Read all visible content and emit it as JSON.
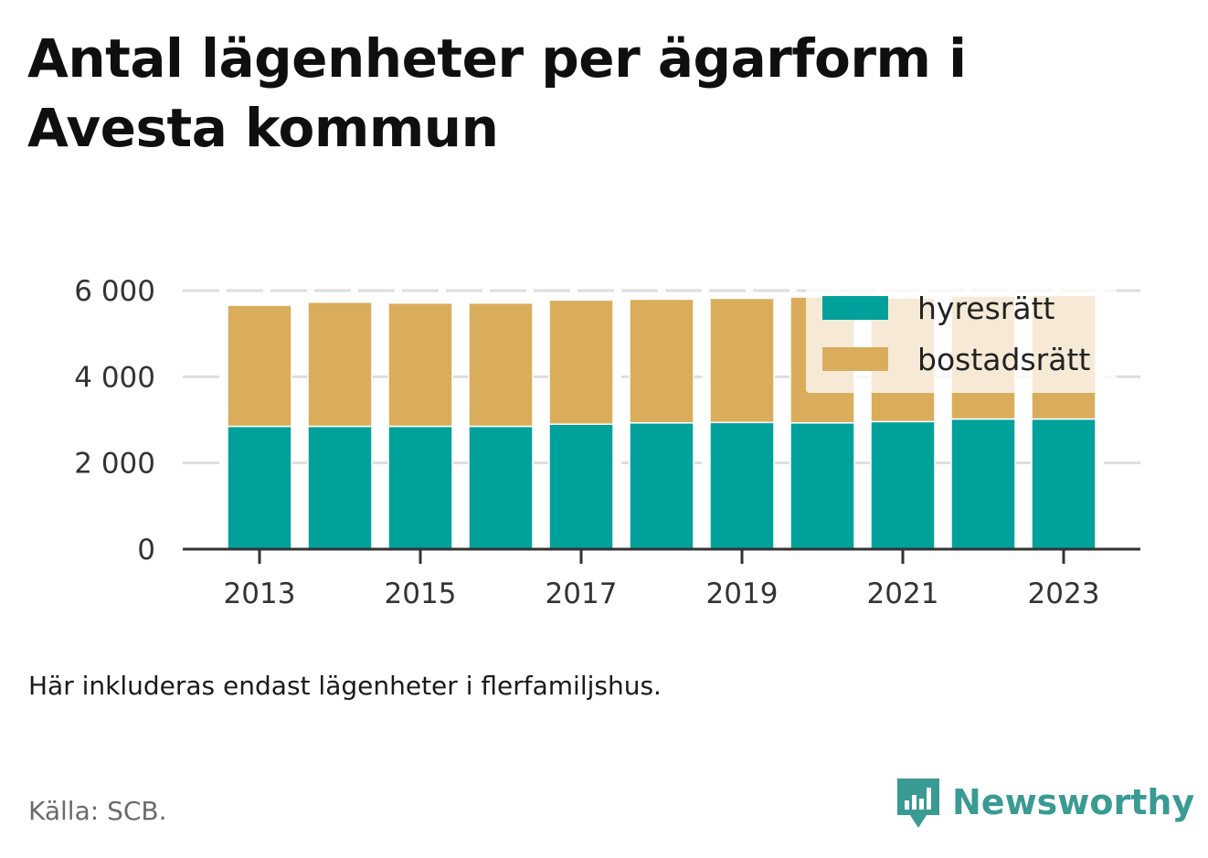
{
  "title": "Antal lägenheter per ägarform i Avesta kommun",
  "note": "Här inkluderas endast lägenheter i flerfamiljshus.",
  "source": "Källa: SCB.",
  "brand": {
    "name": "Newsworthy",
    "icon": "newsworthy-logo-icon",
    "color": "#3a9a94"
  },
  "chart_data": {
    "type": "bar",
    "stacked": true,
    "categories": [
      "2013",
      "2014",
      "2015",
      "2016",
      "2017",
      "2018",
      "2019",
      "2020",
      "2021",
      "2022",
      "2023"
    ],
    "x_tick_labels": [
      "2013",
      "2015",
      "2017",
      "2019",
      "2021",
      "2023"
    ],
    "series": [
      {
        "name": "hyresrätt",
        "color": "#00a19a",
        "values": [
          2850,
          2850,
          2850,
          2850,
          2900,
          2930,
          2940,
          2930,
          2960,
          3020,
          3020
        ]
      },
      {
        "name": "bostadsrätt",
        "color": "#d9ad5b",
        "values": [
          2810,
          2880,
          2860,
          2860,
          2880,
          2870,
          2880,
          2920,
          2870,
          2850,
          2870
        ]
      }
    ],
    "ylim": [
      0,
      6000
    ],
    "y_ticks": [
      0,
      2000,
      4000,
      6000
    ],
    "y_tick_labels": [
      "0",
      "2 000",
      "4 000",
      "6 000"
    ],
    "grid": true,
    "legend_position": "top-right",
    "xlabel": "",
    "ylabel": ""
  }
}
